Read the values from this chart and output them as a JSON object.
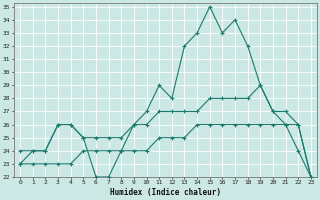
{
  "xlabel": "Humidex (Indice chaleur)",
  "bg_color": "#cce8e4",
  "line_color": "#1a7a6e",
  "grid_color": "#ffffff",
  "hours": [
    0,
    1,
    2,
    3,
    4,
    5,
    6,
    7,
    8,
    9,
    10,
    11,
    12,
    13,
    14,
    15,
    16,
    17,
    18,
    19,
    20,
    21,
    22,
    23
  ],
  "line1": [
    23,
    24,
    24,
    26,
    26,
    25,
    22,
    22,
    24,
    26,
    27,
    29,
    28,
    32,
    33,
    35,
    33,
    34,
    32,
    29,
    27,
    26,
    24,
    22
  ],
  "line2": [
    24,
    24,
    24,
    26,
    26,
    25,
    25,
    25,
    25,
    26,
    26,
    27,
    27,
    27,
    27,
    28,
    28,
    28,
    28,
    29,
    27,
    27,
    26,
    22
  ],
  "line3": [
    23,
    23,
    23,
    23,
    23,
    24,
    24,
    24,
    24,
    24,
    24,
    25,
    25,
    25,
    26,
    26,
    26,
    26,
    26,
    26,
    26,
    26,
    26,
    22
  ],
  "ylim": [
    22,
    35
  ],
  "xlim": [
    -0.5,
    23.5
  ],
  "yticks": [
    22,
    23,
    24,
    25,
    26,
    27,
    28,
    29,
    30,
    31,
    32,
    33,
    34,
    35
  ],
  "xticks": [
    0,
    1,
    2,
    3,
    4,
    5,
    6,
    7,
    8,
    9,
    10,
    11,
    12,
    13,
    14,
    15,
    16,
    17,
    18,
    19,
    20,
    21,
    22,
    23
  ],
  "markersize": 3,
  "linewidth": 0.8
}
